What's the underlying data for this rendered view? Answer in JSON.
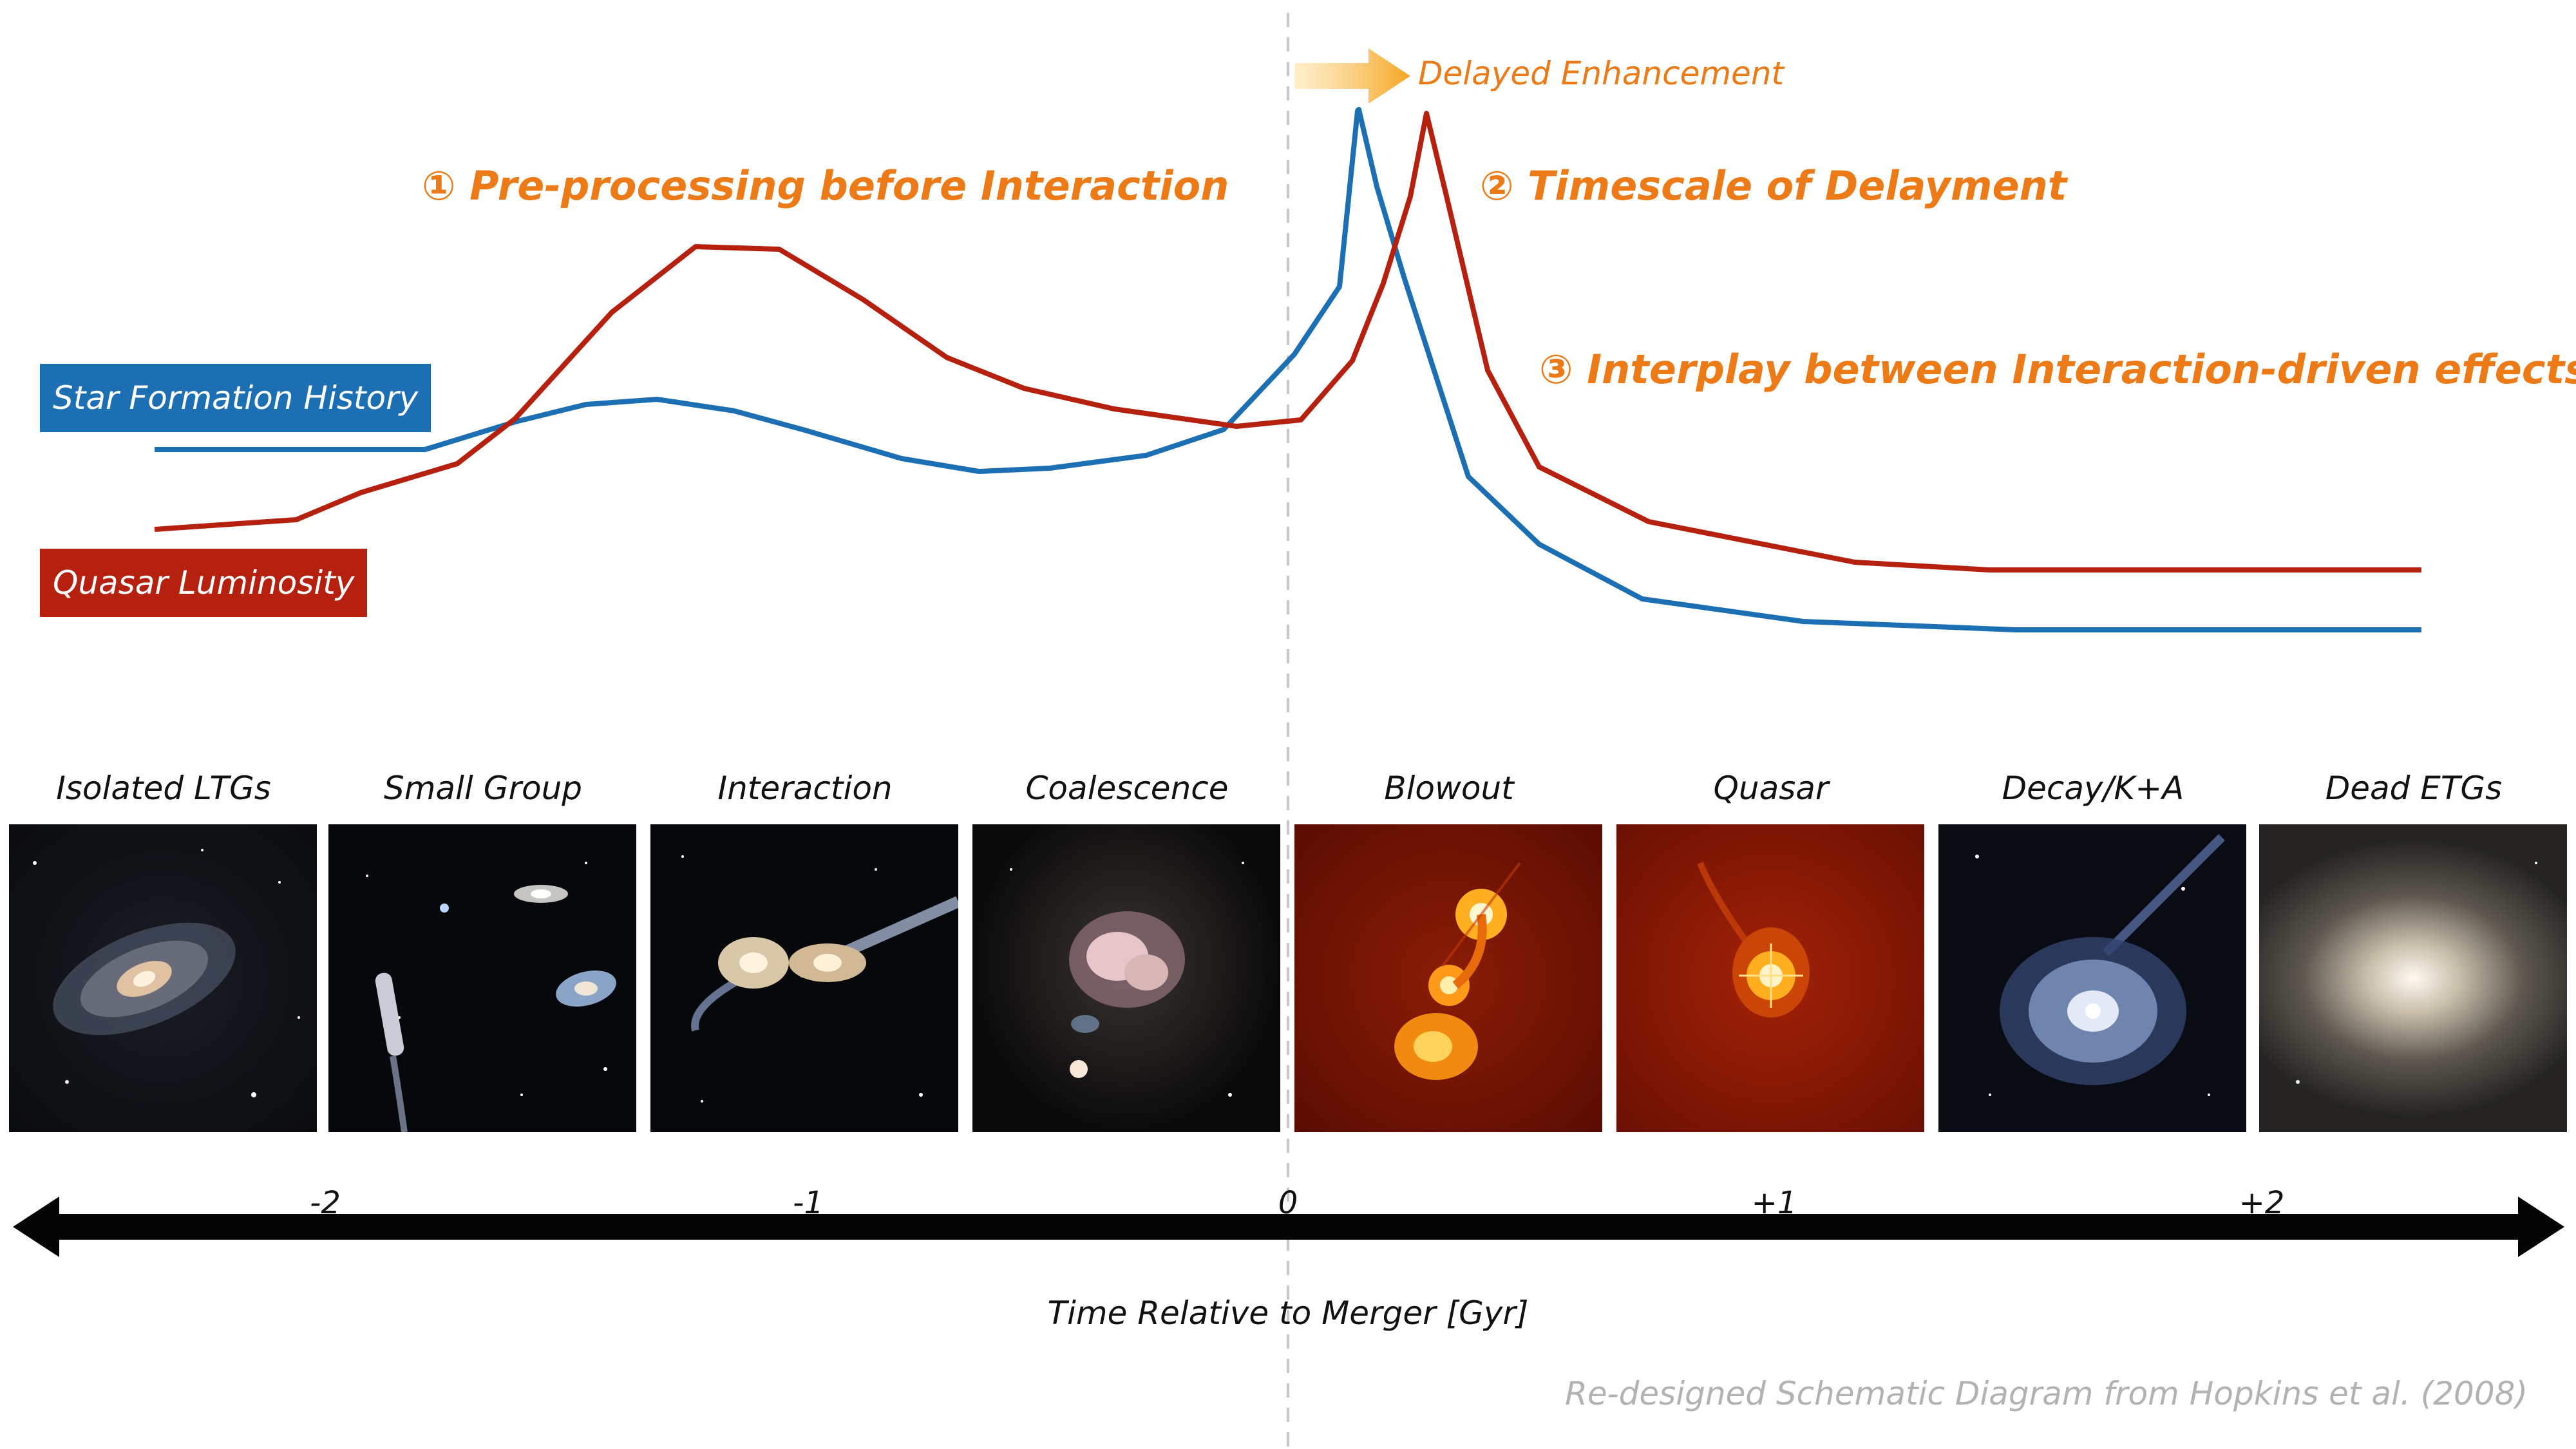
{
  "series": {
    "sfh_label": "Star Formation History",
    "ql_label": "Quasar Luminosity",
    "sfh_color": "#1c6fb3",
    "ql_color": "#b5200f"
  },
  "annotations": {
    "delayed": "Delayed Enhancement",
    "point1": "① Pre-processing before Interaction",
    "point2": "② Timescale of Delayment",
    "point3": "③ Interplay between Interaction-driven effects",
    "accent_color": "#ec7a16"
  },
  "stages": [
    {
      "title": "Isolated LTGs"
    },
    {
      "title": "Small Group"
    },
    {
      "title": "Interaction"
    },
    {
      "title": "Coalescence"
    },
    {
      "title": "Blowout"
    },
    {
      "title": "Quasar"
    },
    {
      "title": "Decay/K+A"
    },
    {
      "title": "Dead ETGs"
    }
  ],
  "axis": {
    "ticks": [
      "-2",
      "-1",
      "0",
      "+1",
      "+2"
    ],
    "label": "Time Relative to Merger [Gyr]"
  },
  "credit": "Re-designed Schematic Diagram from Hopkins et al. (2008)"
}
